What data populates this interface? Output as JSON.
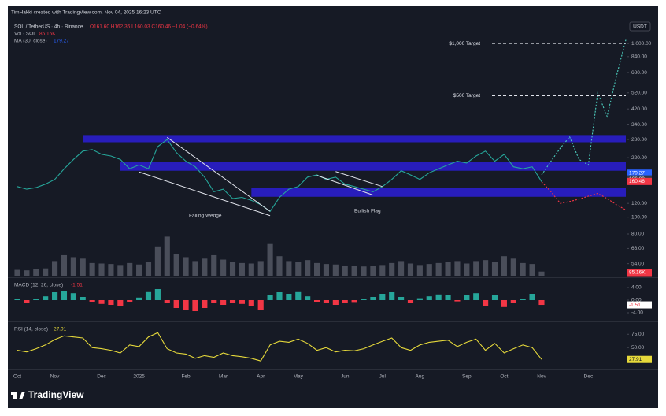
{
  "header": "TimHakki created with TradingView.com, Nov 04, 2025 16:23 UTC",
  "footer": "TradingView",
  "chart_data": [
    {
      "type": "line",
      "log": true,
      "unit": "USDT",
      "symbol": "SOL / TetherUS · 4h · Binance",
      "ohlc": "O161.60 H162.36 L160.03 C160.46 −1.04 (−0.64%)",
      "volume_legend": "Vol · SOL",
      "volume_legend_value": "85.16K",
      "ma_legend": "MA (30, close)",
      "ma_legend_value": "179.27",
      "categories": [
        "Oct",
        null,
        null,
        null,
        "Nov",
        null,
        null,
        null,
        null,
        "Dec",
        null,
        null,
        null,
        "2025",
        null,
        null,
        null,
        null,
        "Feb",
        null,
        null,
        null,
        "Mar",
        null,
        null,
        null,
        "Apr",
        null,
        null,
        null,
        "May",
        null,
        null,
        null,
        null,
        "Jun",
        null,
        null,
        null,
        "Jul",
        null,
        null,
        null,
        "Aug",
        null,
        null,
        null,
        null,
        "Sep",
        null,
        null,
        null,
        "Oct",
        null,
        null,
        null,
        "Nov",
        null,
        null,
        null,
        null,
        "Dec",
        null,
        null,
        null,
        null
      ],
      "ylim": [
        46,
        1300
      ],
      "yticks": [
        {
          "value": 1000,
          "label": "1,000.00"
        },
        {
          "value": 840,
          "label": "840.00"
        },
        {
          "value": 680,
          "label": "680.00"
        },
        {
          "value": 520,
          "label": "520.00"
        },
        {
          "value": 420,
          "label": "420.00"
        },
        {
          "value": 340,
          "label": "340.00"
        },
        {
          "value": 280,
          "label": "280.00"
        },
        {
          "value": 220,
          "label": "220.00"
        },
        {
          "value": 120,
          "label": "120.00"
        },
        {
          "value": 100,
          "label": "100.00"
        },
        {
          "value": 80,
          "label": "80.00"
        },
        {
          "value": 66,
          "label": "66.00"
        },
        {
          "value": 54,
          "label": "54.00"
        }
      ],
      "series": [
        {
          "color": "#26a69a",
          "values": [
            150,
            145,
            148,
            155,
            165,
            190,
            215,
            240,
            245,
            230,
            225,
            215,
            190,
            200,
            190,
            255,
            280,
            235,
            210,
            195,
            170,
            140,
            145,
            128,
            130,
            125,
            118,
            108,
            130,
            145,
            150,
            170,
            175,
            165,
            170,
            155,
            150,
            145,
            140,
            150,
            165,
            185,
            175,
            165,
            180,
            190,
            200,
            210,
            205,
            225,
            240,
            210,
            230,
            195,
            190,
            195,
            160,
            null,
            null,
            null,
            null,
            null,
            null,
            null,
            null,
            null
          ]
        },
        {
          "color": "#4dd0c0",
          "dash": true,
          "values": [
            null,
            null,
            null,
            null,
            null,
            null,
            null,
            null,
            null,
            null,
            null,
            null,
            null,
            null,
            null,
            null,
            null,
            null,
            null,
            null,
            null,
            null,
            null,
            null,
            null,
            null,
            null,
            null,
            null,
            null,
            null,
            null,
            null,
            null,
            null,
            null,
            null,
            null,
            null,
            null,
            null,
            null,
            null,
            null,
            null,
            null,
            null,
            null,
            null,
            null,
            null,
            null,
            null,
            null,
            null,
            null,
            175,
            210,
            250,
            290,
            215,
            200,
            520,
            380,
            650,
            1050
          ]
        },
        {
          "color": "#f23645",
          "dash": true,
          "values": [
            null,
            null,
            null,
            null,
            null,
            null,
            null,
            null,
            null,
            null,
            null,
            null,
            null,
            null,
            null,
            null,
            null,
            null,
            null,
            null,
            null,
            null,
            null,
            null,
            null,
            null,
            null,
            null,
            null,
            null,
            null,
            null,
            null,
            null,
            null,
            null,
            null,
            null,
            null,
            null,
            null,
            null,
            null,
            null,
            null,
            null,
            null,
            null,
            null,
            null,
            null,
            null,
            null,
            null,
            null,
            null,
            160,
            140,
            120,
            123,
            127,
            132,
            137,
            128,
            118,
            110
          ]
        }
      ],
      "zones": [
        {
          "low": 270,
          "high": 297,
          "start": 7,
          "color": "#2b1fd6"
        },
        {
          "low": 185,
          "high": 208,
          "start": 11,
          "color": "#2b1fd6"
        },
        {
          "low": 131,
          "high": 147,
          "start": 25,
          "color": "#2b1fd6"
        }
      ],
      "trendlines": [
        {
          "from": [
            16,
            288
          ],
          "to": [
            27,
            108
          ]
        },
        {
          "from": [
            13,
            182
          ],
          "to": [
            27,
            102
          ]
        },
        {
          "from": [
            34,
            183
          ],
          "to": [
            39,
            150
          ]
        },
        {
          "from": [
            32,
            174
          ],
          "to": [
            38,
            134
          ]
        }
      ],
      "annotations": [
        "Falling Wedge",
        "Bullish Flag"
      ],
      "targets": [
        {
          "label": "$1,000 Target",
          "value": 1000
        },
        {
          "label": "$500 Target",
          "value": 500
        }
      ],
      "price_labels": [
        {
          "value": 179.27,
          "color": "#2962ff"
        },
        {
          "value": 166,
          "label": "166.00",
          "color": "#363a45"
        },
        {
          "value": 160.46,
          "color": "#f23645"
        }
      ]
    },
    {
      "type": "bar",
      "color": "#4a4e5a",
      "values": [
        120,
        110,
        130,
        150,
        300,
        420,
        380,
        350,
        260,
        250,
        240,
        220,
        260,
        230,
        280,
        600,
        800,
        450,
        380,
        300,
        350,
        420,
        330,
        280,
        260,
        250,
        300,
        650,
        400,
        300,
        280,
        320,
        260,
        240,
        230,
        210,
        200,
        190,
        200,
        220,
        260,
        300,
        250,
        220,
        240,
        260,
        280,
        300,
        250,
        300,
        320,
        280,
        400,
        350,
        260,
        240,
        85.16
      ],
      "value_labels": [
        null,
        null,
        null,
        null,
        null,
        null,
        null,
        null,
        null,
        null,
        null,
        null,
        null,
        null,
        null,
        null,
        null,
        null,
        null,
        null,
        null,
        null,
        null,
        null,
        null,
        null,
        null,
        null,
        null,
        null,
        null,
        null,
        null,
        null,
        null,
        null,
        null,
        null,
        null,
        null,
        null,
        null,
        null,
        null,
        null,
        null,
        null,
        null,
        null,
        null,
        null,
        null,
        null,
        null,
        null,
        null,
        "85.16K"
      ],
      "label_color": "#f23645",
      "ylim": [
        0,
        1000
      ]
    },
    {
      "type": "bar",
      "title": "MACD (12, 26, close)",
      "color": "#26a69a",
      "negative_color": "#f23645",
      "values": [
        0.5,
        -0.8,
        0.3,
        1.2,
        2.5,
        3.0,
        2.2,
        1.0,
        -0.5,
        -1.2,
        -1.5,
        -2.0,
        -0.5,
        0.8,
        2.8,
        3.5,
        -1.0,
        -2.5,
        -3.0,
        -3.5,
        -2.5,
        -1.0,
        -1.5,
        -0.8,
        -1.2,
        -2.0,
        -3.2,
        1.5,
        2.5,
        2.0,
        2.8,
        1.2,
        -0.5,
        -0.8,
        -1.5,
        -1.0,
        -0.6,
        0.4,
        1.0,
        2.0,
        2.5,
        1.0,
        -0.8,
        0.6,
        1.2,
        1.8,
        1.5,
        -0.4,
        1.5,
        2.2,
        -1.8,
        1.6,
        -2.2,
        -0.8,
        0.5,
        2.0,
        -1.51
      ],
      "ylim": [
        -6,
        6
      ],
      "yticks": [
        {
          "value": 4,
          "label": "4.00"
        },
        {
          "value": 0,
          "label": "0.00"
        },
        {
          "value": -4,
          "label": "-4.00"
        }
      ]
    },
    {
      "type": "line",
      "title": "RSI (14, close)",
      "color": "#e6d93b",
      "values": [
        45,
        42,
        48,
        55,
        65,
        72,
        70,
        68,
        50,
        48,
        45,
        40,
        55,
        52,
        70,
        78,
        48,
        40,
        38,
        30,
        35,
        32,
        40,
        35,
        33,
        30,
        25,
        55,
        62,
        60,
        66,
        58,
        45,
        50,
        42,
        45,
        44,
        48,
        55,
        62,
        68,
        50,
        45,
        55,
        60,
        62,
        64,
        52,
        60,
        66,
        45,
        58,
        40,
        48,
        55,
        50,
        27.91
      ],
      "ylim": [
        15,
        96
      ],
      "yticks": [
        {
          "value": 75,
          "label": "75.00"
        },
        {
          "value": 50,
          "label": "50.00"
        }
      ]
    }
  ]
}
